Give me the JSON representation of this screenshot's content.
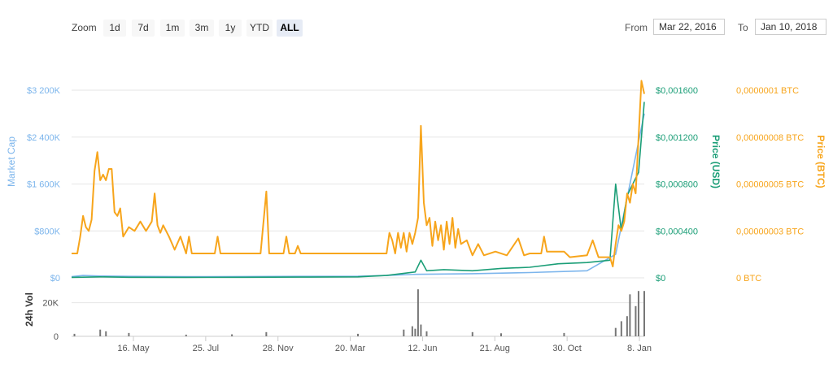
{
  "toolbar": {
    "zoom_label": "Zoom",
    "zoom_buttons": [
      "1d",
      "7d",
      "1m",
      "3m",
      "1y",
      "YTD",
      "ALL"
    ],
    "active_zoom": "ALL",
    "from_label": "From",
    "from_value": "Mar 22, 2016",
    "to_label": "To",
    "to_value": "Jan 10, 2018"
  },
  "colors": {
    "market_cap": "#7cb5ec",
    "price_usd": "#1b9e77",
    "price_btc": "#f7a51c",
    "volume": "#777777",
    "grid": "#e6e6e6"
  },
  "chart_data": {
    "type": "line",
    "x_ticks": [
      "16. May",
      "25. Jul",
      "28. Nov",
      "20. Mar",
      "12. Jun",
      "21. Aug",
      "30. Oct",
      "8. Jan"
    ],
    "axes": {
      "market_cap": {
        "label": "Market Cap",
        "ticks": [
          "$0",
          "$800K",
          "$1 600K",
          "$2 400K",
          "$3 200K"
        ],
        "ylim": [
          0,
          3200000
        ]
      },
      "price_usd": {
        "label": "Price (USD)",
        "ticks": [
          "$0",
          "$0,000400",
          "$0,000800",
          "$0,001200",
          "$0,001600"
        ],
        "ylim": [
          0,
          0.0016
        ]
      },
      "price_btc": {
        "label": "Price (BTC)",
        "ticks": [
          "0 BTC",
          "0,00000003 BTC",
          "0,00000005 BTC",
          "0,00000008 BTC",
          "0,0000001 BTC"
        ],
        "ylim": [
          0,
          1e-07
        ]
      },
      "volume": {
        "label": "24h Vol",
        "ticks": [
          "0",
          "20K"
        ],
        "ylim": [
          0,
          30000
        ]
      }
    },
    "series": [
      {
        "name": "Price (BTC)",
        "axis": "price_btc",
        "points": [
          [
            0,
            1.3e-08
          ],
          [
            0.01,
            1.3e-08
          ],
          [
            0.015,
            2.2e-08
          ],
          [
            0.02,
            3.3e-08
          ],
          [
            0.025,
            2.7e-08
          ],
          [
            0.03,
            2.5e-08
          ],
          [
            0.035,
            3.1e-08
          ],
          [
            0.04,
            5.7e-08
          ],
          [
            0.045,
            6.7e-08
          ],
          [
            0.05,
            5.2e-08
          ],
          [
            0.055,
            5.5e-08
          ],
          [
            0.06,
            5.2e-08
          ],
          [
            0.065,
            5.8e-08
          ],
          [
            0.07,
            5.8e-08
          ],
          [
            0.075,
            3.5e-08
          ],
          [
            0.08,
            3.3e-08
          ],
          [
            0.085,
            3.7e-08
          ],
          [
            0.09,
            2.2e-08
          ],
          [
            0.1,
            2.7e-08
          ],
          [
            0.11,
            2.5e-08
          ],
          [
            0.12,
            3e-08
          ],
          [
            0.13,
            2.5e-08
          ],
          [
            0.14,
            3e-08
          ],
          [
            0.145,
            4.5e-08
          ],
          [
            0.15,
            2.8e-08
          ],
          [
            0.155,
            2.4e-08
          ],
          [
            0.16,
            2.8e-08
          ],
          [
            0.17,
            2.2e-08
          ],
          [
            0.18,
            1.5e-08
          ],
          [
            0.19,
            2.2e-08
          ],
          [
            0.2,
            1.3e-08
          ],
          [
            0.205,
            2.2e-08
          ],
          [
            0.21,
            1.3e-08
          ],
          [
            0.25,
            1.3e-08
          ],
          [
            0.255,
            2.2e-08
          ],
          [
            0.26,
            1.3e-08
          ],
          [
            0.33,
            1.3e-08
          ],
          [
            0.34,
            4.6e-08
          ],
          [
            0.345,
            1.3e-08
          ],
          [
            0.37,
            1.3e-08
          ],
          [
            0.375,
            2.2e-08
          ],
          [
            0.38,
            1.3e-08
          ],
          [
            0.39,
            1.3e-08
          ],
          [
            0.395,
            1.7e-08
          ],
          [
            0.4,
            1.3e-08
          ],
          [
            0.55,
            1.3e-08
          ],
          [
            0.555,
            2.4e-08
          ],
          [
            0.56,
            2e-08
          ],
          [
            0.565,
            1.3e-08
          ],
          [
            0.57,
            2.4e-08
          ],
          [
            0.575,
            1.6e-08
          ],
          [
            0.58,
            2.4e-08
          ],
          [
            0.585,
            1.4e-08
          ],
          [
            0.59,
            2.4e-08
          ],
          [
            0.595,
            1.8e-08
          ],
          [
            0.6,
            2.4e-08
          ],
          [
            0.605,
            3.2e-08
          ],
          [
            0.61,
            8.1e-08
          ],
          [
            0.615,
            4e-08
          ],
          [
            0.62,
            2.8e-08
          ],
          [
            0.625,
            3.2e-08
          ],
          [
            0.63,
            1.7e-08
          ],
          [
            0.635,
            3e-08
          ],
          [
            0.64,
            2e-08
          ],
          [
            0.645,
            2.8e-08
          ],
          [
            0.65,
            1.5e-08
          ],
          [
            0.655,
            3e-08
          ],
          [
            0.66,
            1.8e-08
          ],
          [
            0.665,
            3.2e-08
          ],
          [
            0.67,
            1.6e-08
          ],
          [
            0.675,
            2.6e-08
          ],
          [
            0.68,
            1.8e-08
          ],
          [
            0.69,
            2e-08
          ],
          [
            0.7,
            1.2e-08
          ],
          [
            0.71,
            1.8e-08
          ],
          [
            0.72,
            1.2e-08
          ],
          [
            0.74,
            1.4e-08
          ],
          [
            0.76,
            1.2e-08
          ],
          [
            0.78,
            2.1e-08
          ],
          [
            0.79,
            1.2e-08
          ],
          [
            0.8,
            1.3e-08
          ],
          [
            0.82,
            1.3e-08
          ],
          [
            0.825,
            2.2e-08
          ],
          [
            0.83,
            1.4e-08
          ],
          [
            0.86,
            1.4e-08
          ],
          [
            0.87,
            1.1e-08
          ],
          [
            0.9,
            1.2e-08
          ],
          [
            0.91,
            2e-08
          ],
          [
            0.92,
            1.1e-08
          ],
          [
            0.94,
            1.1e-08
          ],
          [
            0.945,
            6e-09
          ],
          [
            0.95,
            1.8e-08
          ],
          [
            0.955,
            2.8e-08
          ],
          [
            0.96,
            2.5e-08
          ],
          [
            0.965,
            3e-08
          ],
          [
            0.97,
            4.5e-08
          ],
          [
            0.975,
            4e-08
          ],
          [
            0.98,
            5e-08
          ],
          [
            0.985,
            4.5e-08
          ],
          [
            0.99,
            7.5e-08
          ],
          [
            0.995,
            1.05e-07
          ],
          [
            1.0,
            9.8e-08
          ]
        ]
      },
      {
        "name": "Price (USD)",
        "axis": "price_usd",
        "points": [
          [
            0,
            4e-06
          ],
          [
            0.05,
            8e-06
          ],
          [
            0.1,
            5e-06
          ],
          [
            0.2,
            4e-06
          ],
          [
            0.3,
            5e-06
          ],
          [
            0.4,
            6e-06
          ],
          [
            0.5,
            8e-06
          ],
          [
            0.55,
            2e-05
          ],
          [
            0.6,
            5e-05
          ],
          [
            0.61,
            0.00015
          ],
          [
            0.62,
            6e-05
          ],
          [
            0.65,
            7e-05
          ],
          [
            0.7,
            6e-05
          ],
          [
            0.75,
            8e-05
          ],
          [
            0.8,
            9e-05
          ],
          [
            0.85,
            0.00012
          ],
          [
            0.9,
            0.00013
          ],
          [
            0.94,
            0.00015
          ],
          [
            0.95,
            0.0008
          ],
          [
            0.96,
            0.0004
          ],
          [
            0.97,
            0.0007
          ],
          [
            0.98,
            0.0008
          ],
          [
            0.99,
            0.0009
          ],
          [
            1.0,
            0.0015
          ]
        ]
      },
      {
        "name": "Market Cap",
        "axis": "market_cap",
        "points": [
          [
            0,
            20000
          ],
          [
            0.02,
            40000
          ],
          [
            0.05,
            30000
          ],
          [
            0.1,
            25000
          ],
          [
            0.2,
            20000
          ],
          [
            0.3,
            22000
          ],
          [
            0.4,
            25000
          ],
          [
            0.5,
            28000
          ],
          [
            0.55,
            40000
          ],
          [
            0.6,
            60000
          ],
          [
            0.7,
            70000
          ],
          [
            0.8,
            90000
          ],
          [
            0.9,
            120000
          ],
          [
            0.95,
            400000
          ],
          [
            1.0,
            2800000
          ]
        ]
      }
    ],
    "volume_bars": [
      [
        0.005,
        1500
      ],
      [
        0.05,
        4000
      ],
      [
        0.06,
        3000
      ],
      [
        0.1,
        2000
      ],
      [
        0.2,
        1000
      ],
      [
        0.28,
        1200
      ],
      [
        0.34,
        2500
      ],
      [
        0.5,
        1500
      ],
      [
        0.58,
        4000
      ],
      [
        0.595,
        6000
      ],
      [
        0.6,
        4500
      ],
      [
        0.605,
        28000
      ],
      [
        0.61,
        7000
      ],
      [
        0.62,
        3000
      ],
      [
        0.7,
        2500
      ],
      [
        0.75,
        1800
      ],
      [
        0.86,
        2000
      ],
      [
        0.95,
        5000
      ],
      [
        0.96,
        9000
      ],
      [
        0.97,
        12000
      ],
      [
        0.975,
        25000
      ],
      [
        0.985,
        18000
      ],
      [
        0.99,
        27000
      ],
      [
        1.0,
        27000
      ]
    ]
  }
}
